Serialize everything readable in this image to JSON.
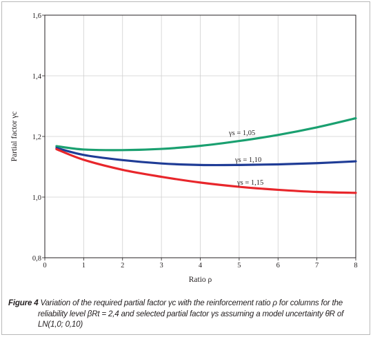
{
  "chart_data": {
    "type": "line",
    "title": "",
    "xlabel": "Ratio ρ",
    "ylabel": "Partial factor γc",
    "xlim": [
      0,
      8
    ],
    "ylim": [
      0.8,
      1.6
    ],
    "xticks": [
      "0",
      "1",
      "2",
      "3",
      "4",
      "5",
      "6",
      "7",
      "8"
    ],
    "yticks": [
      "0,8",
      "1,0",
      "1,2",
      "1,4",
      "1,6"
    ],
    "grid": true,
    "legend": "none (inline labels)",
    "series": [
      {
        "name": "γs = 1,05",
        "color": "#1aa070",
        "x": [
          0.3,
          1,
          2,
          3,
          4,
          5,
          6,
          7,
          8
        ],
        "y": [
          1.168,
          1.157,
          1.155,
          1.159,
          1.169,
          1.185,
          1.205,
          1.23,
          1.26
        ]
      },
      {
        "name": "γs = 1,10",
        "color": "#1f3c96",
        "x": [
          0.3,
          1,
          2,
          3,
          4,
          5,
          6,
          7,
          8
        ],
        "y": [
          1.162,
          1.139,
          1.122,
          1.111,
          1.106,
          1.106,
          1.108,
          1.112,
          1.118
        ]
      },
      {
        "name": "γs = 1,15",
        "color": "#e8262b",
        "x": [
          0.3,
          1,
          2,
          3,
          4,
          5,
          6,
          7,
          8
        ],
        "y": [
          1.158,
          1.123,
          1.09,
          1.067,
          1.048,
          1.034,
          1.024,
          1.017,
          1.014
        ]
      }
    ]
  },
  "caption": {
    "line1": "Variation of the required partial factor γc with the reinforcement ratio ρ for columns for the",
    "line2": "reliability level βRt = 2,4 and selected partial factor γs assuming a model uncertainty θR of",
    "line3": "LN(1,0; 0,10)",
    "label": "Figure 4"
  }
}
